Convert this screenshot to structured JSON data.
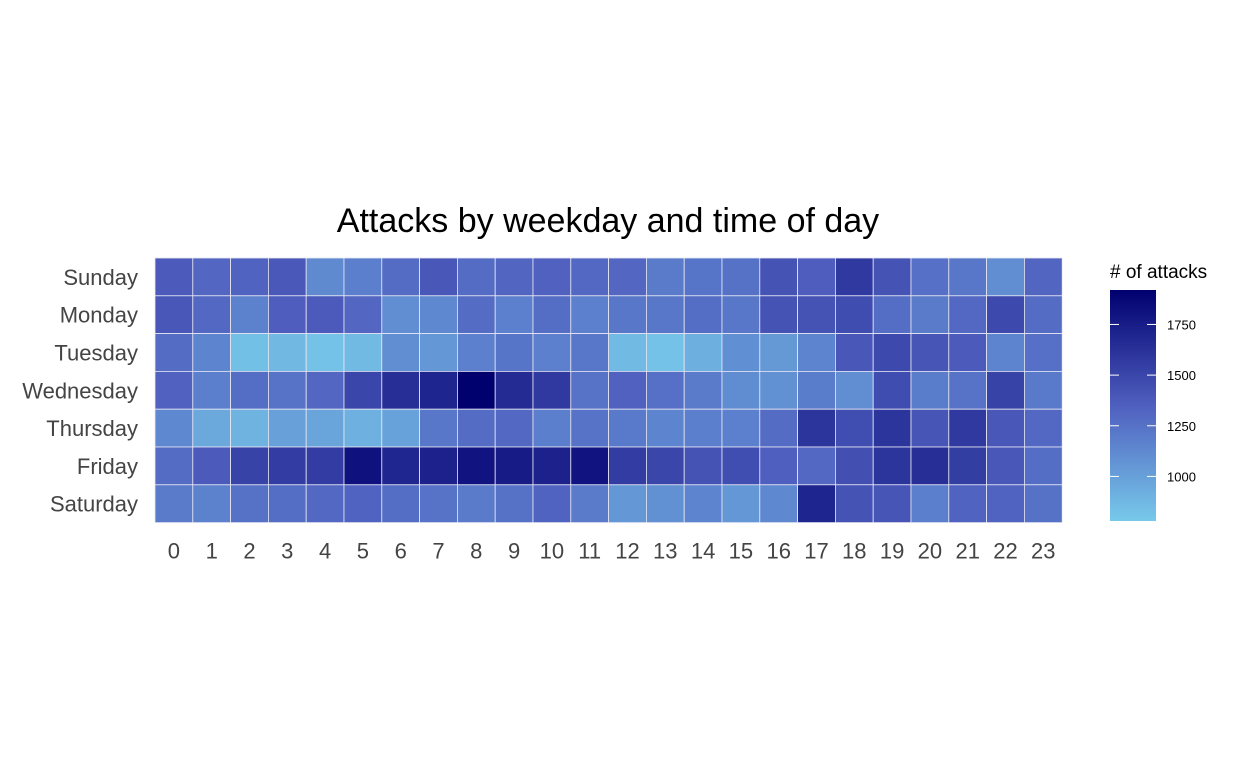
{
  "chart_data": {
    "type": "heatmap",
    "title": "Attacks by weekday and time of day",
    "xlabel": "",
    "ylabel": "",
    "columns": [
      "0",
      "1",
      "2",
      "3",
      "4",
      "5",
      "6",
      "7",
      "8",
      "9",
      "10",
      "11",
      "12",
      "13",
      "14",
      "15",
      "16",
      "17",
      "18",
      "19",
      "20",
      "21",
      "22",
      "23"
    ],
    "rows": [
      "Sunday",
      "Monday",
      "Tuesday",
      "Wednesday",
      "Thursday",
      "Friday",
      "Saturday"
    ],
    "values": [
      [
        1380,
        1310,
        1330,
        1390,
        1120,
        1180,
        1280,
        1400,
        1280,
        1320,
        1340,
        1300,
        1310,
        1200,
        1230,
        1250,
        1420,
        1360,
        1580,
        1420,
        1260,
        1220,
        1100,
        1320
      ],
      [
        1400,
        1300,
        1160,
        1360,
        1380,
        1310,
        1100,
        1130,
        1280,
        1170,
        1270,
        1170,
        1220,
        1220,
        1270,
        1220,
        1420,
        1420,
        1460,
        1270,
        1200,
        1300,
        1480,
        1280
      ],
      [
        1280,
        1150,
        830,
        870,
        820,
        860,
        1100,
        1050,
        1170,
        1230,
        1170,
        1220,
        860,
        820,
        920,
        1090,
        1040,
        1150,
        1400,
        1480,
        1410,
        1380,
        1150,
        1260
      ],
      [
        1340,
        1180,
        1270,
        1240,
        1310,
        1500,
        1640,
        1700,
        1920,
        1660,
        1580,
        1240,
        1340,
        1260,
        1200,
        1110,
        1080,
        1190,
        1100,
        1460,
        1190,
        1240,
        1520,
        1210
      ],
      [
        1130,
        950,
        900,
        1000,
        980,
        910,
        990,
        1220,
        1280,
        1300,
        1180,
        1240,
        1210,
        1150,
        1180,
        1170,
        1280,
        1600,
        1450,
        1600,
        1410,
        1580,
        1400,
        1300
      ],
      [
        1280,
        1380,
        1520,
        1560,
        1560,
        1810,
        1690,
        1720,
        1800,
        1760,
        1720,
        1800,
        1560,
        1500,
        1420,
        1450,
        1350,
        1300,
        1440,
        1600,
        1640,
        1550,
        1400,
        1270
      ],
      [
        1200,
        1160,
        1250,
        1270,
        1300,
        1330,
        1270,
        1240,
        1200,
        1250,
        1330,
        1200,
        1050,
        1080,
        1150,
        1050,
        1130,
        1700,
        1420,
        1410,
        1180,
        1330,
        1330,
        1250
      ]
    ],
    "colorbar": {
      "title": "# of attacks",
      "min": 780,
      "max": 1920,
      "ticks": [
        1000,
        1250,
        1500,
        1750
      ],
      "low_color": "#77c9ea",
      "mid_color": "#4f5fbf",
      "high_color": "#00006f"
    },
    "cell_border_color": "#e8e8f4",
    "grid": false,
    "legend_position": "right"
  }
}
